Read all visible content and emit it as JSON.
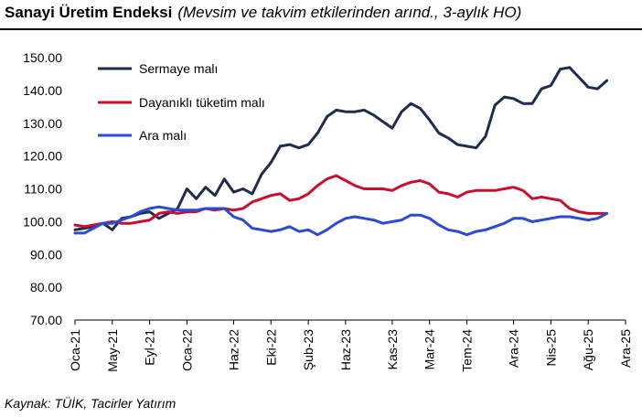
{
  "header": {
    "title": "Sanayi Üretim Endeksi",
    "subtitle": "(Mevsim ve takvim etkilerinden arınd., 3-aylık HO)"
  },
  "footer": {
    "source": "Kaynak: TÜİK, Tacirler Yatırım"
  },
  "chart_data": {
    "type": "line",
    "title": "Sanayi Üretim Endeksi",
    "subtitle": "(Mevsim ve takvim etkilerinden arınd., 3-aylık HO)",
    "x_start": "2021-01",
    "x_end": "2025-12",
    "x_ticks": [
      "Oca-21",
      "May-21",
      "Eyl-21",
      "Oca-22",
      "Haz-22",
      "Eki-22",
      "Şub-23",
      "Haz-23",
      "Kas-23",
      "Mar-24",
      "Tem-24",
      "Ara-24",
      "Nis-25",
      "Ağu-25",
      "Ara-25"
    ],
    "ylim": [
      70,
      150
    ],
    "y_ticks": [
      "70.00",
      "80.00",
      "90.00",
      "100.00",
      "110.00",
      "120.00",
      "130.00",
      "140.00",
      "150.00"
    ],
    "legend_position": "top-left",
    "series": [
      {
        "name": "Sermaye malı",
        "color": "#1f2d4d",
        "values": [
          97.5,
          98,
          98.5,
          99.5,
          97.5,
          101,
          101.5,
          102.5,
          103,
          101,
          102.5,
          104,
          110,
          107,
          110.5,
          108,
          113,
          109,
          110,
          108.5,
          114.5,
          118,
          123,
          123.5,
          122.5,
          123.5,
          127,
          132,
          134,
          133.5,
          133.5,
          134,
          132.5,
          130.5,
          128.5,
          133.5,
          136,
          134.5,
          131,
          127,
          125.5,
          123.5,
          123,
          122.5,
          126,
          135.5,
          138,
          137.5,
          136,
          136,
          140.5,
          141.5,
          146.5,
          147,
          144,
          141,
          140.5,
          143
        ]
      },
      {
        "name": "Dayanıklı tüketim malı",
        "color": "#c8102e",
        "values": [
          99,
          98.5,
          99,
          99.5,
          100,
          99.5,
          99.5,
          100,
          100.5,
          102.5,
          103,
          102.5,
          103,
          103,
          104,
          103.5,
          104,
          103.5,
          104,
          106,
          107,
          108,
          108.5,
          106.5,
          107,
          108.5,
          111,
          113,
          114,
          112.5,
          111,
          110,
          110,
          110,
          109.5,
          111,
          112,
          112.5,
          111.5,
          109,
          108.5,
          107.5,
          109,
          109.5,
          109.5,
          109.5,
          110,
          110.5,
          109.5,
          107,
          107.5,
          107,
          106.5,
          104,
          103,
          102.5,
          102.5,
          102.5
        ]
      },
      {
        "name": "Ara malı",
        "color": "#2b4ad6",
        "values": [
          96.5,
          96.5,
          98,
          99.5,
          99.5,
          100.5,
          101.5,
          103,
          104,
          104.5,
          104,
          103.5,
          103.5,
          103.5,
          104,
          104,
          104,
          101.5,
          100.5,
          98,
          97.5,
          97,
          97.5,
          98.5,
          97,
          97.5,
          96,
          97.5,
          99.5,
          101,
          101.5,
          101,
          100.5,
          99.5,
          100,
          100.5,
          102,
          102,
          101,
          99,
          97.5,
          97,
          96,
          97,
          97.5,
          98.5,
          99.5,
          101,
          101,
          100,
          100.5,
          101,
          101.5,
          101.5,
          101,
          100.5,
          101,
          102.5
        ]
      }
    ]
  }
}
